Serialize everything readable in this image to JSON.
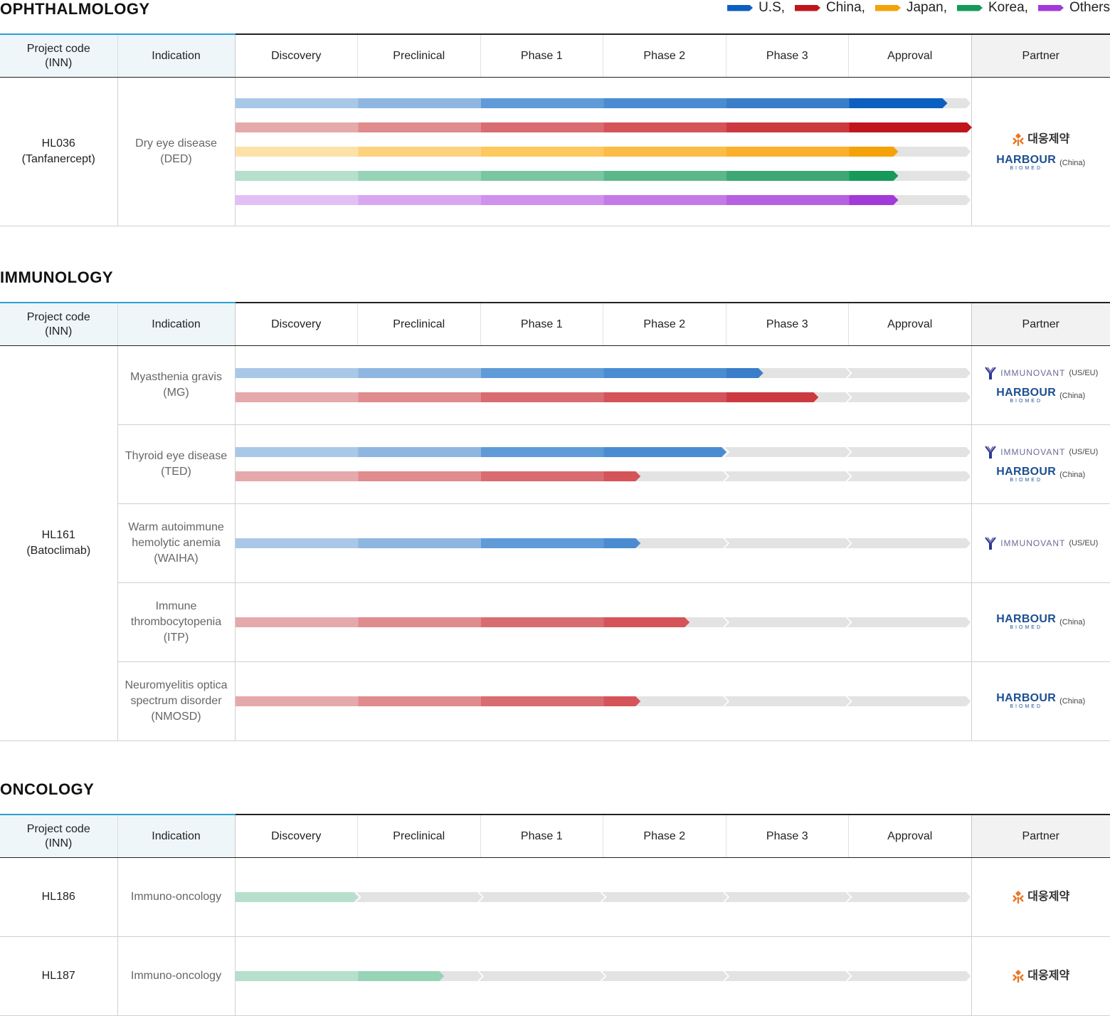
{
  "legend": [
    {
      "label": "U.S,",
      "color": "#0d5fbf"
    },
    {
      "label": "China,",
      "color": "#c0151c"
    },
    {
      "label": "Japan,",
      "color": "#f5a20a"
    },
    {
      "label": "Korea,",
      "color": "#159a5a"
    },
    {
      "label": "Others",
      "color": "#a23ad8"
    }
  ],
  "headers": {
    "project_code": "Project code",
    "project_code_sub": "(INN)",
    "indication": "Indication",
    "partner": "Partner",
    "stages": [
      "Discovery",
      "Preclinical",
      "Phase 1",
      "Phase 2",
      "Phase 3",
      "Approval"
    ]
  },
  "partners": {
    "daewoong": {
      "text": "대웅제약",
      "icon": "daewoong-logo-icon"
    },
    "harbour": {
      "text": "HARBOUR",
      "sub": "BIOMED",
      "region": "(China)",
      "icon": "harbour-biomed-logo-icon"
    },
    "immunovant": {
      "text": "IMMUNOVANT",
      "region": "(US/EU)",
      "icon": "immunovant-logo-icon"
    }
  },
  "chart_data": {
    "type": "bar",
    "stage_scale": "0 = start of Discovery, 6 = end of Approval; each stage spans one unit",
    "sections": [
      {
        "title": "OPHTHALMOLOGY",
        "projects": [
          {
            "code": "HL036",
            "inn": "(Tanfanercept)",
            "indications": [
              {
                "name_line1": "Dry eye disease",
                "name_line2": "(DED)",
                "name_line3": "",
                "partners": [
                  "daewoong",
                  "harbour"
                ],
                "progress": [
                  {
                    "region": "U.S",
                    "value": 5.8
                  },
                  {
                    "region": "China",
                    "value": 6.0
                  },
                  {
                    "region": "Japan",
                    "value": 5.4
                  },
                  {
                    "region": "Korea",
                    "value": 5.4
                  },
                  {
                    "region": "Others",
                    "value": 5.4
                  }
                ]
              }
            ]
          }
        ]
      },
      {
        "title": "IMMUNOLOGY",
        "projects": [
          {
            "code": "HL161",
            "inn": "(Batoclimab)",
            "indications": [
              {
                "name_line1": "Myasthenia gravis",
                "name_line2": "(MG)",
                "name_line3": "",
                "partners": [
                  "immunovant",
                  "harbour"
                ],
                "progress": [
                  {
                    "region": "U.S",
                    "value": 4.3
                  },
                  {
                    "region": "China",
                    "value": 4.75
                  }
                ]
              },
              {
                "name_line1": "Thyroid eye disease",
                "name_line2": "(TED)",
                "name_line3": "",
                "partners": [
                  "immunovant",
                  "harbour"
                ],
                "progress": [
                  {
                    "region": "U.S",
                    "value": 4.0
                  },
                  {
                    "region": "China",
                    "value": 3.3
                  }
                ]
              },
              {
                "name_line1": "Warm autoimmune",
                "name_line2": "hemolytic anemia",
                "name_line3": "(WAIHA)",
                "partners": [
                  "immunovant"
                ],
                "progress": [
                  {
                    "region": "U.S",
                    "value": 3.3
                  }
                ]
              },
              {
                "name_line1": "Immune",
                "name_line2": "thrombocytopenia",
                "name_line3": "(ITP)",
                "partners": [
                  "harbour"
                ],
                "progress": [
                  {
                    "region": "China",
                    "value": 3.7
                  }
                ]
              },
              {
                "name_line1": "Neuromyelitis optica",
                "name_line2": "spectrum disorder",
                "name_line3": "(NMOSD)",
                "partners": [
                  "harbour"
                ],
                "progress": [
                  {
                    "region": "China",
                    "value": 3.3
                  }
                ]
              }
            ]
          }
        ]
      },
      {
        "title": "ONCOLOGY",
        "projects": [
          {
            "code": "HL186",
            "inn": "",
            "indications": [
              {
                "name_line1": "Immuno-oncology",
                "name_line2": "",
                "name_line3": "",
                "partners": [
                  "daewoong"
                ],
                "progress": [
                  {
                    "region": "Korea",
                    "value": 1.0
                  }
                ]
              }
            ]
          },
          {
            "code": "HL187",
            "inn": "",
            "indications": [
              {
                "name_line1": "Immuno-oncology",
                "name_line2": "",
                "name_line3": "",
                "partners": [
                  "daewoong"
                ],
                "progress": [
                  {
                    "region": "Korea",
                    "value": 1.7
                  }
                ]
              }
            ]
          }
        ]
      }
    ]
  }
}
